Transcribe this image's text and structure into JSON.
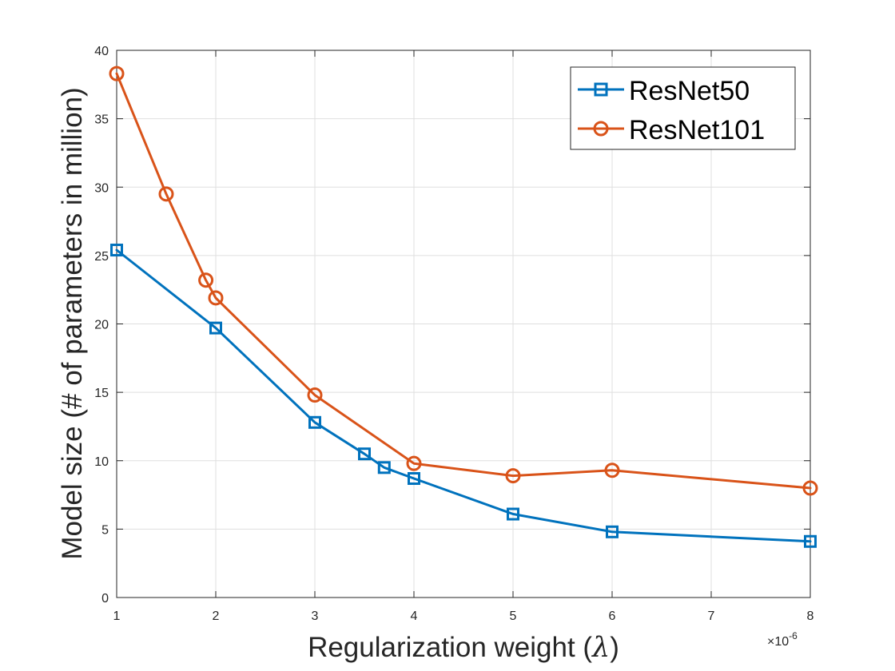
{
  "chart_data": {
    "type": "line",
    "title": "",
    "xlabel": "Regularization weight (λ)",
    "xlabel_prefix": "Regularization weight (",
    "xlabel_symbol": "λ",
    "xlabel_suffix": ")",
    "ylabel": "Model size (# of parameters in million)",
    "x_exponent_label": "×10",
    "x_exponent_power": "-6",
    "xlim": [
      1,
      8
    ],
    "ylim": [
      0,
      40
    ],
    "xticks": [
      1,
      2,
      3,
      4,
      5,
      6,
      7,
      8
    ],
    "yticks": [
      0,
      5,
      10,
      15,
      20,
      25,
      30,
      35,
      40
    ],
    "grid": true,
    "legend_position": "top-right",
    "series": [
      {
        "name": "ResNet50",
        "color": "#0072BD",
        "marker": "square",
        "x": [
          1,
          2,
          3,
          3.5,
          3.7,
          4,
          5,
          6,
          8
        ],
        "y": [
          25.4,
          19.7,
          12.8,
          10.5,
          9.5,
          8.7,
          6.1,
          4.8,
          4.1
        ]
      },
      {
        "name": "ResNet101",
        "color": "#D95319",
        "marker": "circle",
        "x": [
          1,
          1.5,
          1.9,
          2,
          3,
          4,
          5,
          6,
          8
        ],
        "y": [
          38.3,
          29.5,
          23.2,
          21.9,
          14.8,
          9.8,
          8.9,
          9.3,
          8.0
        ]
      }
    ]
  }
}
